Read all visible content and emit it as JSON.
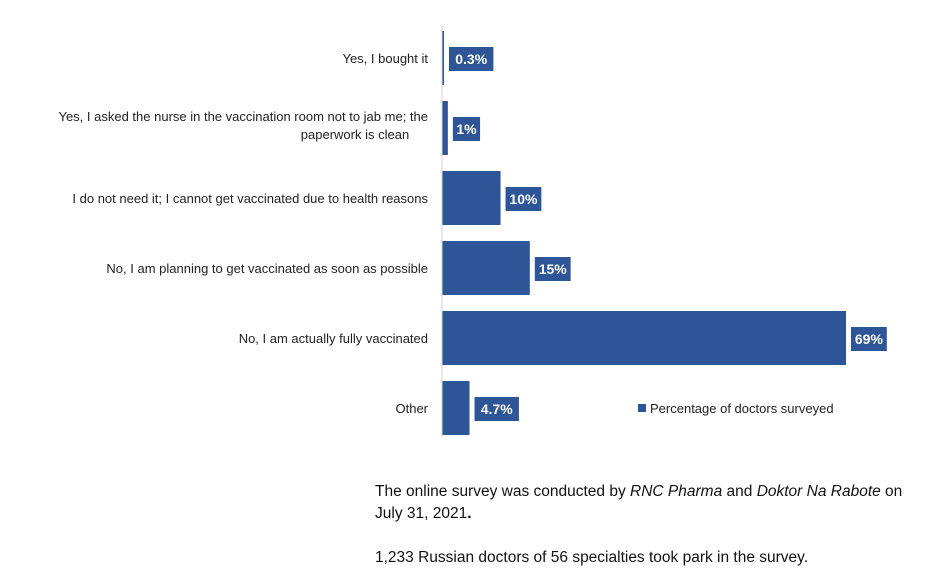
{
  "chart_data": {
    "type": "bar",
    "orientation": "horizontal",
    "categories": [
      [
        "Yes, I bought it"
      ],
      [
        "Yes, I asked the nurse in the vaccination room not to jab me; the",
        "paperwork is clean"
      ],
      [
        "I do not need it; I cannot get vaccinated due to health reasons"
      ],
      [
        "No, I am planning to get vaccinated as soon as possible"
      ],
      [
        "No, I am actually fully vaccinated"
      ],
      [
        "Other"
      ]
    ],
    "series": [
      {
        "name": "Percentage of doctors surveyed",
        "values": [
          0.3,
          1,
          10,
          15,
          69,
          4.7
        ],
        "labels": [
          "0.3%",
          "1%",
          "10%",
          "15%",
          "69%",
          "4.7%"
        ]
      }
    ],
    "xlim": [
      0,
      69
    ],
    "grid": false,
    "legend_position": "bottom-right",
    "colors": {
      "bar": "#2E5597",
      "axis": "#D0D0D0"
    }
  },
  "notes": {
    "line1_pre": "The online survey was conducted by ",
    "line1_org1": "RNC Pharma",
    "line1_and": " and ",
    "line1_org2": "Doktor Na Rabote",
    "line1_post": " on July 31, 2021",
    "line1_end": ".",
    "line2": "1,233 Russian doctors of 56 specialties took park in the survey."
  }
}
